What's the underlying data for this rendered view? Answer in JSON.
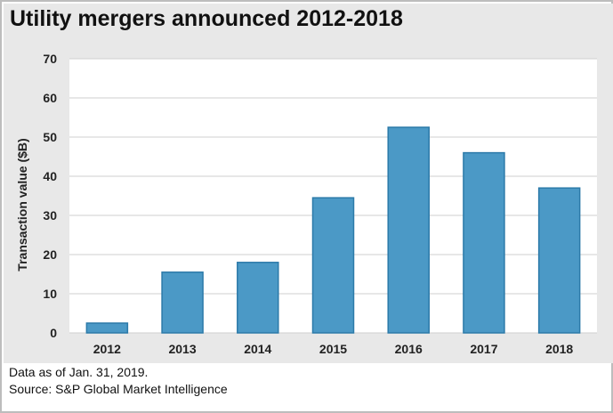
{
  "title": "Utility mergers announced 2012-2018",
  "footer": {
    "note": "Data as of Jan. 31, 2019.",
    "source": "Source: S&P Global Market Intelligence"
  },
  "colors": {
    "bar_fill": "#4b99c6",
    "bar_stroke": "#2c7aa9",
    "panel_background": "#e8e8e8",
    "plot_background": "#ffffff",
    "gridline": "#cfcfcf"
  },
  "chart_data": {
    "type": "bar",
    "title": "Utility mergers announced 2012-2018",
    "xlabel": "",
    "ylabel": "Transaction value ($B)",
    "categories": [
      "2012",
      "2013",
      "2014",
      "2015",
      "2016",
      "2017",
      "2018"
    ],
    "values": [
      2.5,
      15.5,
      18,
      34.5,
      52.5,
      46,
      37
    ],
    "ylim": [
      0,
      70
    ],
    "yticks": [
      0,
      10,
      20,
      30,
      40,
      50,
      60,
      70
    ],
    "grid": true,
    "legend": "none"
  }
}
